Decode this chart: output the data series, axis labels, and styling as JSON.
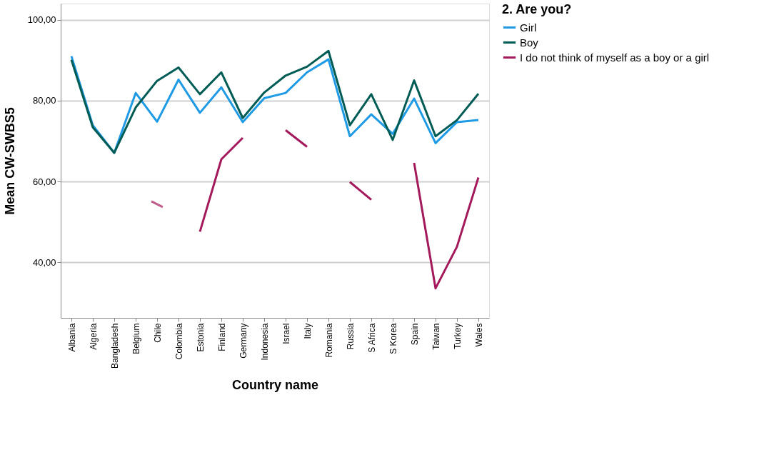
{
  "chart_data": {
    "type": "line",
    "xlabel": "Country name",
    "ylabel": "Mean CW-SWBS5",
    "legend_title": "2. Are you?",
    "categories": [
      "Albania",
      "Algeria",
      "Bangladesh",
      "Belgium",
      "Chile",
      "Colombia",
      "Estonia",
      "Finland",
      "Germany",
      "Indonesia",
      "Israel",
      "Italy",
      "Romania",
      "Russia",
      "S Africa",
      "S Korea",
      "Spain",
      "Taiwan",
      "Turkey",
      "Wales"
    ],
    "series": [
      {
        "name": "Girl",
        "color": "#1f9be6",
        "values": [
          91.0,
          73.9,
          67.1,
          81.9,
          74.8,
          85.2,
          77.0,
          83.3,
          74.7,
          80.6,
          81.9,
          87.0,
          90.2,
          71.2,
          76.6,
          71.8,
          80.5,
          69.5,
          74.7,
          75.2
        ]
      },
      {
        "name": "Boy",
        "color": "#005c55",
        "values": [
          90.1,
          73.4,
          67.1,
          78.3,
          84.9,
          88.2,
          81.6,
          87.0,
          75.7,
          82.0,
          86.2,
          88.4,
          92.3,
          73.9,
          81.6,
          70.3,
          85.0,
          71.2,
          75.2,
          81.7
        ]
      },
      {
        "name": "I do not think of myself as a boy or a girl",
        "color": "#a3195b",
        "values": [
          null,
          null,
          null,
          null,
          54.4,
          null,
          47.6,
          65.5,
          70.8,
          null,
          72.7,
          68.6,
          null,
          59.9,
          55.5,
          null,
          64.6,
          33.6,
          43.9,
          61.0
        ]
      }
    ],
    "ylim": [
      26.3,
      104
    ],
    "yticks": [
      {
        "value": 40,
        "label": "40,00"
      },
      {
        "value": 60,
        "label": "60,00"
      },
      {
        "value": 80,
        "label": "80,00"
      },
      {
        "value": 100,
        "label": "100,00"
      }
    ],
    "grid": "y",
    "legend": "top right",
    "marker": "none",
    "line_style": "solid"
  }
}
